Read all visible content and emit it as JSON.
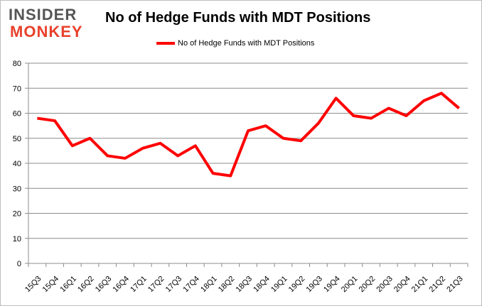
{
  "logo": {
    "line1": "INSIDER",
    "line2": "MONKEY"
  },
  "chart_data": {
    "type": "line",
    "title": "No of Hedge Funds with MDT Positions",
    "xlabel": "",
    "ylabel": "",
    "categories": [
      "15Q3",
      "15Q4",
      "16Q1",
      "16Q2",
      "16Q3",
      "16Q4",
      "17Q1",
      "17Q2",
      "17Q3",
      "17Q4",
      "18Q1",
      "18Q2",
      "18Q3",
      "18Q4",
      "19Q1",
      "19Q2",
      "19Q3",
      "19Q4",
      "20Q1",
      "20Q2",
      "20Q3",
      "20Q4",
      "21Q1",
      "21Q2",
      "21Q3"
    ],
    "series": [
      {
        "name": "No of Hedge Funds with MDT Positions",
        "color": "#ff0000",
        "values": [
          58,
          57,
          47,
          50,
          43,
          42,
          46,
          48,
          43,
          47,
          36,
          35,
          53,
          55,
          50,
          49,
          56,
          66,
          59,
          58,
          62,
          59,
          65,
          68,
          62
        ]
      }
    ],
    "ylim": [
      0,
      80
    ],
    "yticks": [
      0,
      10,
      20,
      30,
      40,
      50,
      60,
      70,
      80
    ],
    "grid": true,
    "legend_position": "top-center"
  }
}
